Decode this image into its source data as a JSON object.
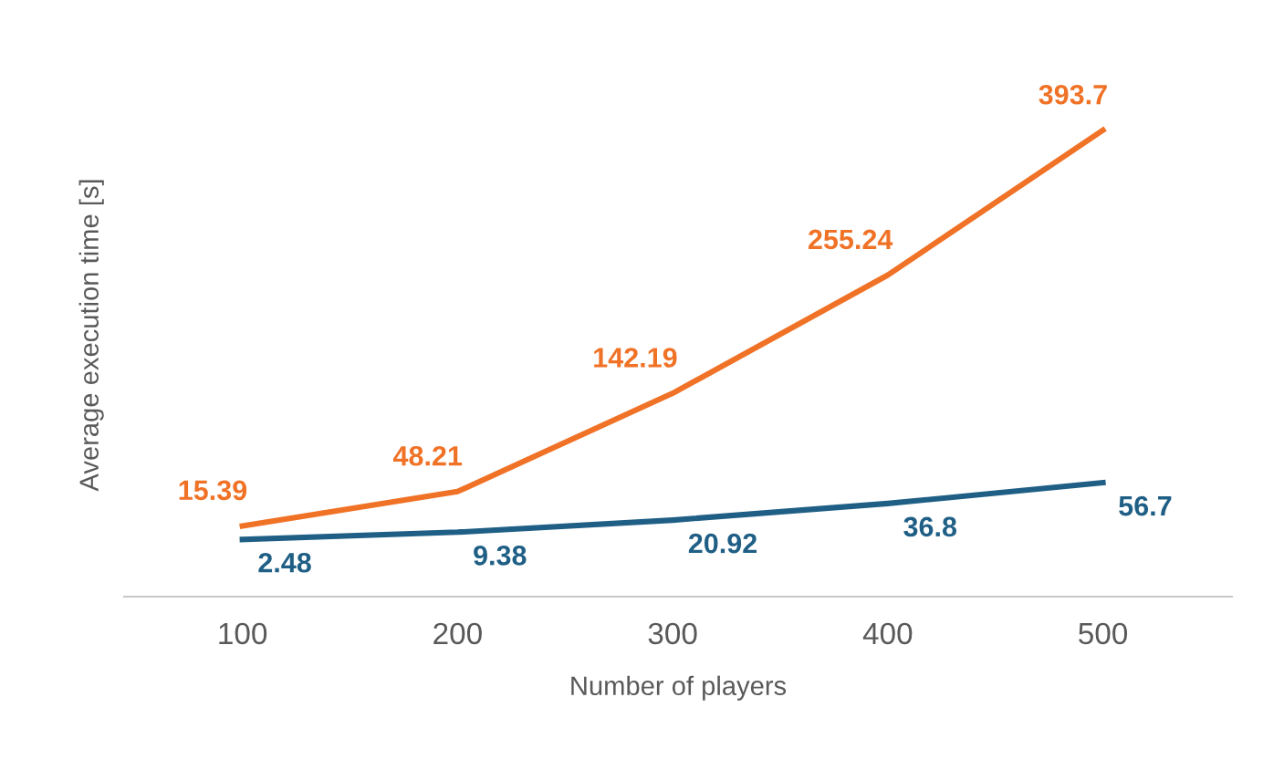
{
  "chart_data": {
    "type": "line",
    "xlabel": "Number of players",
    "ylabel": "Average execution time [s]",
    "categories": [
      "100",
      "200",
      "300",
      "400",
      "500"
    ],
    "series": [
      {
        "color": "#f07226",
        "values": [
          15.39,
          48.21,
          142.19,
          255.24,
          393.7
        ]
      },
      {
        "color": "#1f5f85",
        "values": [
          2.48,
          9.38,
          20.92,
          36.8,
          56.7
        ]
      }
    ],
    "tick_labels": "x",
    "data_labels": true,
    "grid": false,
    "legend": false,
    "marker": "none",
    "line_style": "solid"
  }
}
